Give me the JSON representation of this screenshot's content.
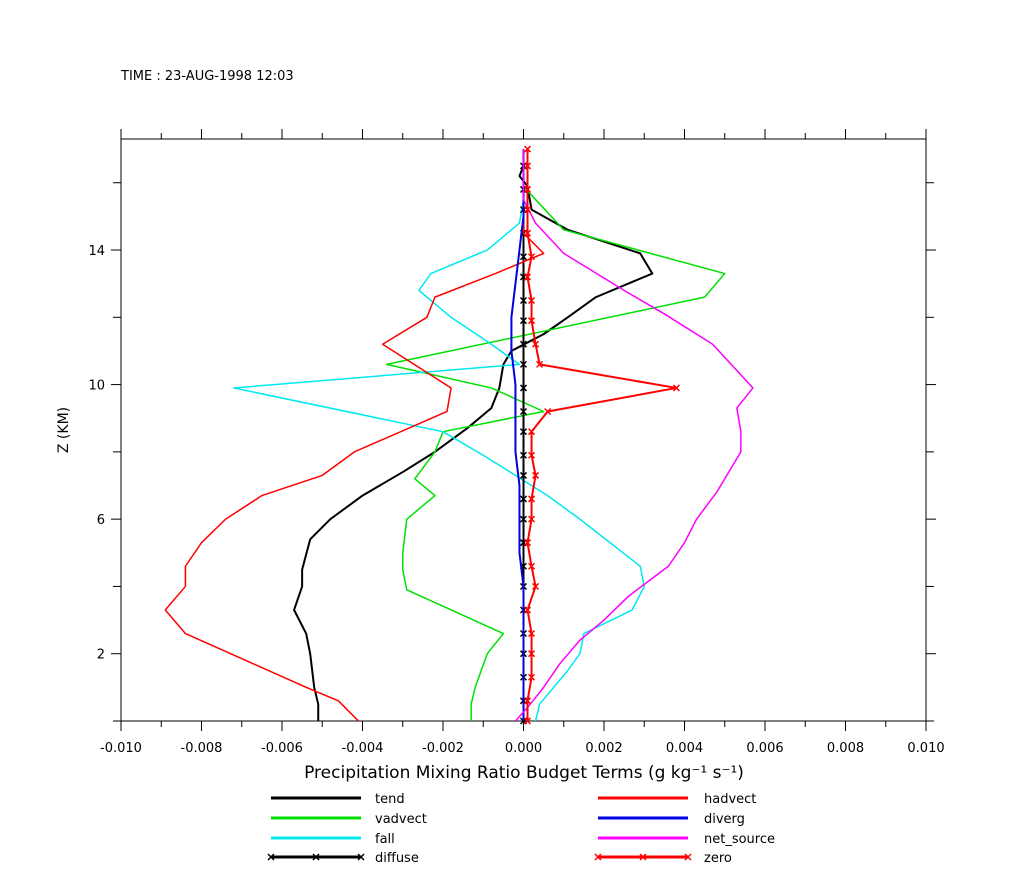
{
  "chart_data": {
    "type": "line",
    "title": "TIME : 23-AUG-1998 12:03",
    "xlabel": "Precipitation Mixing Ratio Budget Terms (g kg⁻¹ s⁻¹)",
    "ylabel": "Z (KM)",
    "xlim": [
      -0.01,
      0.01
    ],
    "ylim": [
      0,
      17.3
    ],
    "x_ticks_major": [
      "-0.010",
      "-0.008",
      "-0.006",
      "-0.004",
      "-0.002",
      "0.000",
      "0.002",
      "0.004",
      "0.006",
      "0.008",
      "0.010"
    ],
    "y_ticks_major": [
      "2",
      "6",
      "10",
      "14"
    ],
    "grid": false,
    "legend_position": "bottom",
    "series": [
      {
        "name": "tend",
        "color": "#000000",
        "marker": "none",
        "points": [
          [
            -0.0051,
            0
          ],
          [
            -0.0051,
            0.5
          ],
          [
            -0.0052,
            1.0
          ],
          [
            -0.0053,
            2.0
          ],
          [
            -0.0054,
            2.6
          ],
          [
            -0.0057,
            3.3
          ],
          [
            -0.0055,
            4.0
          ],
          [
            -0.0055,
            4.5
          ],
          [
            -0.0053,
            5.4
          ],
          [
            -0.0048,
            6.0
          ],
          [
            -0.004,
            6.7
          ],
          [
            -0.003,
            7.4
          ],
          [
            -0.0022,
            8.0
          ],
          [
            -0.0014,
            8.7
          ],
          [
            -0.0008,
            9.3
          ],
          [
            -0.0006,
            9.9
          ],
          [
            -0.0005,
            10.6
          ],
          [
            -0.0003,
            11.0
          ],
          [
            0.0005,
            11.5
          ],
          [
            0.0011,
            12.0
          ],
          [
            0.0018,
            12.6
          ],
          [
            0.0032,
            13.3
          ],
          [
            0.0029,
            13.9
          ],
          [
            0.0011,
            14.6
          ],
          [
            0.0002,
            15.2
          ],
          [
            0.0001,
            15.9
          ],
          [
            -0.0001,
            16.2
          ],
          [
            0.0,
            16.5
          ],
          [
            0.0,
            17.0
          ]
        ]
      },
      {
        "name": "vadvect",
        "color": "#00e000",
        "marker": "none",
        "points": [
          [
            -0.0013,
            0
          ],
          [
            -0.0013,
            0.5
          ],
          [
            -0.0012,
            1.0
          ],
          [
            -0.0009,
            2.0
          ],
          [
            -0.0005,
            2.6
          ],
          [
            -0.0029,
            3.9
          ],
          [
            -0.003,
            4.5
          ],
          [
            -0.003,
            5.0
          ],
          [
            -0.0029,
            6.0
          ],
          [
            -0.0022,
            6.7
          ],
          [
            -0.0027,
            7.2
          ],
          [
            -0.0022,
            8.0
          ],
          [
            -0.002,
            8.6
          ],
          [
            0.0005,
            9.2
          ],
          [
            -0.0008,
            9.9
          ],
          [
            -0.0034,
            10.6
          ],
          [
            0.0045,
            12.6
          ],
          [
            0.005,
            13.3
          ],
          [
            0.001,
            14.6
          ],
          [
            0.0003,
            15.5
          ],
          [
            0.0,
            15.9
          ],
          [
            0.0,
            16.5
          ],
          [
            0.0,
            17.0
          ]
        ]
      },
      {
        "name": "fall",
        "color": "#00e8f0",
        "marker": "none",
        "points": [
          [
            0.0003,
            0
          ],
          [
            0.0004,
            0.5
          ],
          [
            0.0011,
            1.5
          ],
          [
            0.0014,
            2.0
          ],
          [
            0.0015,
            2.6
          ],
          [
            0.0027,
            3.3
          ],
          [
            0.003,
            4.0
          ],
          [
            0.0029,
            4.6
          ],
          [
            0.0014,
            6.0
          ],
          [
            0.0006,
            6.7
          ],
          [
            -0.001,
            7.9
          ],
          [
            -0.002,
            8.6
          ],
          [
            -0.0072,
            9.9
          ],
          [
            -0.0001,
            10.6
          ],
          [
            -0.0008,
            11.2
          ],
          [
            -0.0018,
            12.0
          ],
          [
            -0.0026,
            12.8
          ],
          [
            -0.0023,
            13.3
          ],
          [
            -0.0009,
            14.0
          ],
          [
            -0.0001,
            14.8
          ],
          [
            0.0,
            15.5
          ],
          [
            0.0,
            16.0
          ],
          [
            0.0,
            17.0
          ]
        ]
      },
      {
        "name": "diffuse",
        "color": "#000000",
        "marker": "x",
        "points": [
          [
            0.0,
            0
          ],
          [
            0.0,
            0.6
          ],
          [
            0.0,
            1.3
          ],
          [
            0.0,
            2.0
          ],
          [
            0.0,
            2.6
          ],
          [
            0.0,
            3.3
          ],
          [
            0.0,
            4.0
          ],
          [
            0.0,
            4.6
          ],
          [
            0.0,
            5.3
          ],
          [
            0.0,
            6.0
          ],
          [
            0.0,
            6.6
          ],
          [
            0.0,
            7.3
          ],
          [
            0.0,
            7.9
          ],
          [
            0.0,
            8.6
          ],
          [
            0.0,
            9.2
          ],
          [
            0.0,
            9.9
          ],
          [
            0.0,
            10.6
          ],
          [
            0.0,
            11.2
          ],
          [
            0.0,
            11.9
          ],
          [
            0.0,
            12.5
          ],
          [
            0.0,
            13.2
          ],
          [
            0.0,
            13.8
          ],
          [
            0.0,
            14.5
          ],
          [
            0.0,
            15.2
          ],
          [
            0.0,
            15.8
          ],
          [
            0.0,
            16.5
          ]
        ]
      },
      {
        "name": "hadvect",
        "color": "#ff0000",
        "marker": "none",
        "points": [
          [
            -0.0041,
            0
          ],
          [
            -0.0046,
            0.6
          ],
          [
            -0.0054,
            1.0
          ],
          [
            -0.0084,
            2.6
          ],
          [
            -0.0089,
            3.3
          ],
          [
            -0.0084,
            4.0
          ],
          [
            -0.0084,
            4.6
          ],
          [
            -0.008,
            5.3
          ],
          [
            -0.0074,
            6.0
          ],
          [
            -0.0065,
            6.7
          ],
          [
            -0.005,
            7.3
          ],
          [
            -0.0042,
            8.0
          ],
          [
            -0.0019,
            9.2
          ],
          [
            -0.0018,
            9.9
          ],
          [
            -0.0035,
            11.2
          ],
          [
            -0.0024,
            12.0
          ],
          [
            -0.0022,
            12.6
          ],
          [
            -0.0007,
            13.3
          ],
          [
            0.0005,
            13.9
          ],
          [
            0.0,
            14.5
          ],
          [
            0.0,
            15.2
          ],
          [
            0.0,
            16.0
          ],
          [
            0.0,
            17.0
          ]
        ]
      },
      {
        "name": "diverg",
        "color": "#0000e0",
        "marker": "none",
        "points": [
          [
            0.0,
            0
          ],
          [
            0.0,
            1.0
          ],
          [
            0.0,
            2.0
          ],
          [
            0.0,
            3.0
          ],
          [
            0.0,
            4.0
          ],
          [
            -0.0001,
            5.0
          ],
          [
            -0.0001,
            6.0
          ],
          [
            -0.0001,
            7.0
          ],
          [
            -0.0002,
            8.0
          ],
          [
            -0.0002,
            9.0
          ],
          [
            -0.0002,
            10.0
          ],
          [
            -0.0003,
            11.0
          ],
          [
            -0.0003,
            12.0
          ],
          [
            -0.0002,
            13.0
          ],
          [
            -0.0001,
            14.0
          ],
          [
            0.0,
            15.0
          ],
          [
            0.0,
            16.0
          ],
          [
            0.0,
            17.0
          ]
        ]
      },
      {
        "name": "net_source",
        "color": "#ff00ff",
        "marker": "none",
        "points": [
          [
            -0.0002,
            0
          ],
          [
            0.0001,
            0.4
          ],
          [
            0.0005,
            1.0
          ],
          [
            0.0009,
            1.7
          ],
          [
            0.0014,
            2.4
          ],
          [
            0.002,
            3.0
          ],
          [
            0.0026,
            3.7
          ],
          [
            0.0036,
            4.6
          ],
          [
            0.004,
            5.3
          ],
          [
            0.0043,
            6.0
          ],
          [
            0.0048,
            6.8
          ],
          [
            0.0054,
            8.0
          ],
          [
            0.0054,
            8.6
          ],
          [
            0.0053,
            9.3
          ],
          [
            0.0057,
            9.9
          ],
          [
            0.0047,
            11.2
          ],
          [
            0.0035,
            12.1
          ],
          [
            0.0025,
            12.8
          ],
          [
            0.001,
            13.9
          ],
          [
            0.0003,
            14.8
          ],
          [
            0.0,
            15.5
          ],
          [
            0.0,
            16.2
          ],
          [
            0.0,
            17.0
          ]
        ]
      },
      {
        "name": "zero",
        "color": "#ff0000",
        "marker": "x",
        "points": [
          [
            0.0001,
            0
          ],
          [
            0.0001,
            0.6
          ],
          [
            0.0002,
            1.3
          ],
          [
            0.0002,
            2.0
          ],
          [
            0.0002,
            2.6
          ],
          [
            0.0001,
            3.3
          ],
          [
            0.0003,
            4.0
          ],
          [
            0.0002,
            4.6
          ],
          [
            0.0001,
            5.3
          ],
          [
            0.0002,
            6.0
          ],
          [
            0.0002,
            6.6
          ],
          [
            0.0003,
            7.3
          ],
          [
            0.0002,
            7.9
          ],
          [
            0.0002,
            8.6
          ],
          [
            0.0006,
            9.2
          ],
          [
            0.0038,
            9.9
          ],
          [
            0.0004,
            10.6
          ],
          [
            0.0003,
            11.2
          ],
          [
            0.0002,
            11.9
          ],
          [
            0.0002,
            12.5
          ],
          [
            0.0001,
            13.2
          ],
          [
            0.0002,
            13.8
          ],
          [
            0.0001,
            14.5
          ],
          [
            0.0001,
            15.2
          ],
          [
            0.0001,
            15.8
          ],
          [
            0.0001,
            16.5
          ],
          [
            0.0001,
            17.0
          ]
        ]
      }
    ]
  }
}
